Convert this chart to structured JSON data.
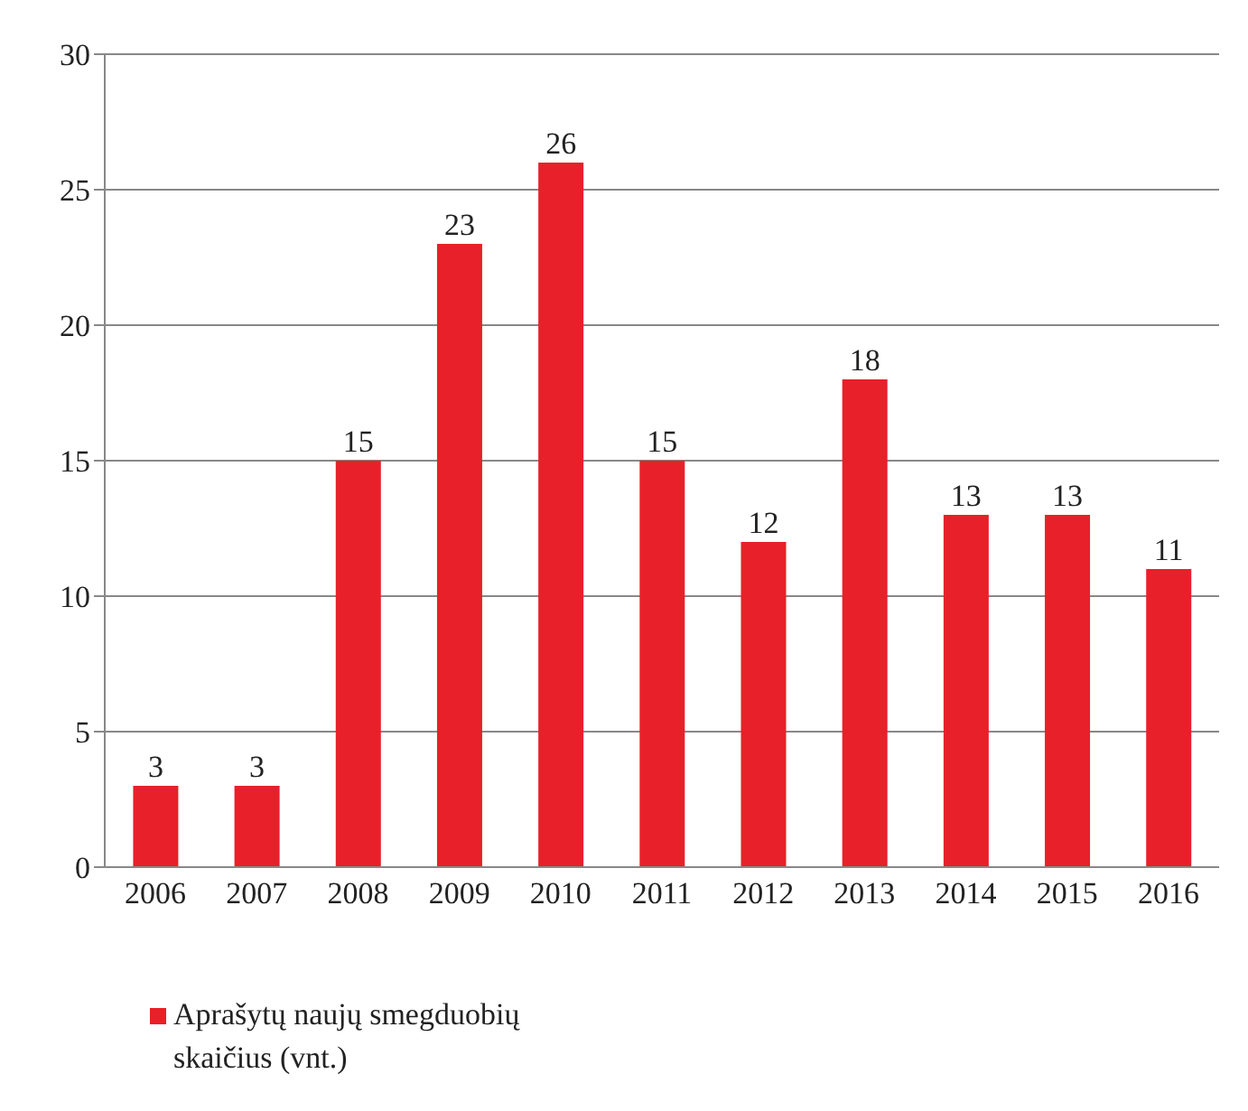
{
  "chart_data": {
    "type": "bar",
    "categories": [
      "2006",
      "2007",
      "2008",
      "2009",
      "2010",
      "2011",
      "2012",
      "2013",
      "2014",
      "2015",
      "2016"
    ],
    "series": [
      {
        "name": "Aprašytų naujų smegduobių skaičius (vnt.)",
        "color": "#e8202a",
        "values": [
          3,
          3,
          15,
          23,
          26,
          15,
          12,
          18,
          13,
          13,
          11
        ]
      }
    ],
    "ylim": [
      0,
      30
    ],
    "yticks": [
      0,
      5,
      10,
      15,
      20,
      25,
      30
    ],
    "grid": "y",
    "legend": "bottom left",
    "data_labels": true
  }
}
